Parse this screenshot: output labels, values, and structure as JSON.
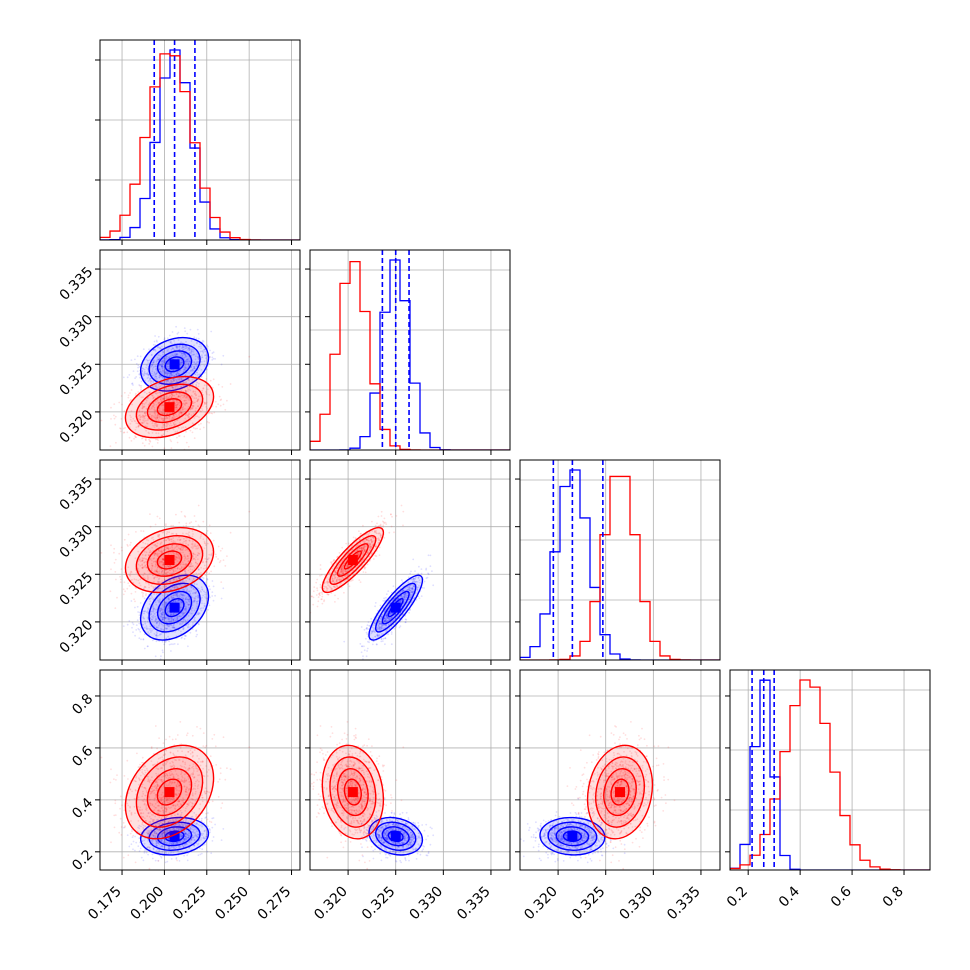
{
  "chart_data": {
    "type": "corner",
    "grid": true,
    "series": [
      {
        "color": "#0000ff",
        "mean": [
          0.206,
          0.325,
          0.3215,
          0.26
        ],
        "sd": [
          0.01,
          0.0014,
          0.0017,
          0.036
        ],
        "quantiles": [
          [
            0.194,
            0.206,
            0.218
          ],
          [
            0.3236,
            0.325,
            0.3264
          ],
          [
            0.3195,
            0.3215,
            0.3247
          ],
          [
            0.215,
            0.26,
            0.3
          ]
        ]
      },
      {
        "color": "#ff0000",
        "mean": [
          0.203,
          0.3205,
          0.3265,
          0.43
        ],
        "sd": [
          0.013,
          0.0016,
          0.0017,
          0.09
        ]
      }
    ],
    "correlations": {
      "blue": [
        [
          1,
          0.25,
          0.35,
          0.15
        ],
        [
          0.25,
          1,
          0.85,
          -0.2
        ],
        [
          0.35,
          0.85,
          1,
          -0.05
        ],
        [
          0.15,
          -0.2,
          -0.05,
          1
        ]
      ],
      "red": [
        [
          1,
          0.35,
          0.25,
          0.3
        ],
        [
          0.35,
          1,
          0.85,
          -0.15
        ],
        [
          0.25,
          0.85,
          1,
          0.15
        ],
        [
          0.3,
          -0.15,
          0.15,
          1
        ]
      ]
    },
    "ranges": [
      [
        0.162,
        0.28
      ],
      [
        0.316,
        0.337
      ],
      [
        0.316,
        0.337
      ],
      [
        0.13,
        0.9
      ]
    ],
    "quantile_lines_color": "#0000ff",
    "x_ticks": [
      {
        "values": [
          0.175,
          0.2,
          0.225,
          0.25,
          0.275
        ],
        "labels": [
          "0.175",
          "0.200",
          "0.225",
          "0.250",
          "0.275"
        ]
      },
      {
        "values": [
          0.32,
          0.325,
          0.33,
          0.335
        ],
        "labels": [
          "0.320",
          "0.325",
          "0.330",
          "0.335"
        ]
      },
      {
        "values": [
          0.32,
          0.325,
          0.33,
          0.335
        ],
        "labels": [
          "0.320",
          "0.325",
          "0.330",
          "0.335"
        ]
      },
      {
        "values": [
          0.2,
          0.4,
          0.6,
          0.8
        ],
        "labels": [
          "0.2",
          "0.4",
          "0.6",
          "0.8"
        ]
      }
    ],
    "y_ticks": [
      null,
      {
        "values": [
          0.32,
          0.325,
          0.33,
          0.335
        ],
        "labels": [
          "0.320",
          "0.325",
          "0.330",
          "0.335"
        ]
      },
      {
        "values": [
          0.32,
          0.325,
          0.33,
          0.335
        ],
        "labels": [
          "0.320",
          "0.325",
          "0.330",
          "0.335"
        ]
      },
      {
        "values": [
          0.2,
          0.4,
          0.6,
          0.8
        ],
        "labels": [
          "0.2",
          "0.4",
          "0.6",
          "0.8"
        ]
      }
    ],
    "scatter_points_per_series": 900,
    "histogram_bins": 20,
    "contour_levels": 4
  }
}
